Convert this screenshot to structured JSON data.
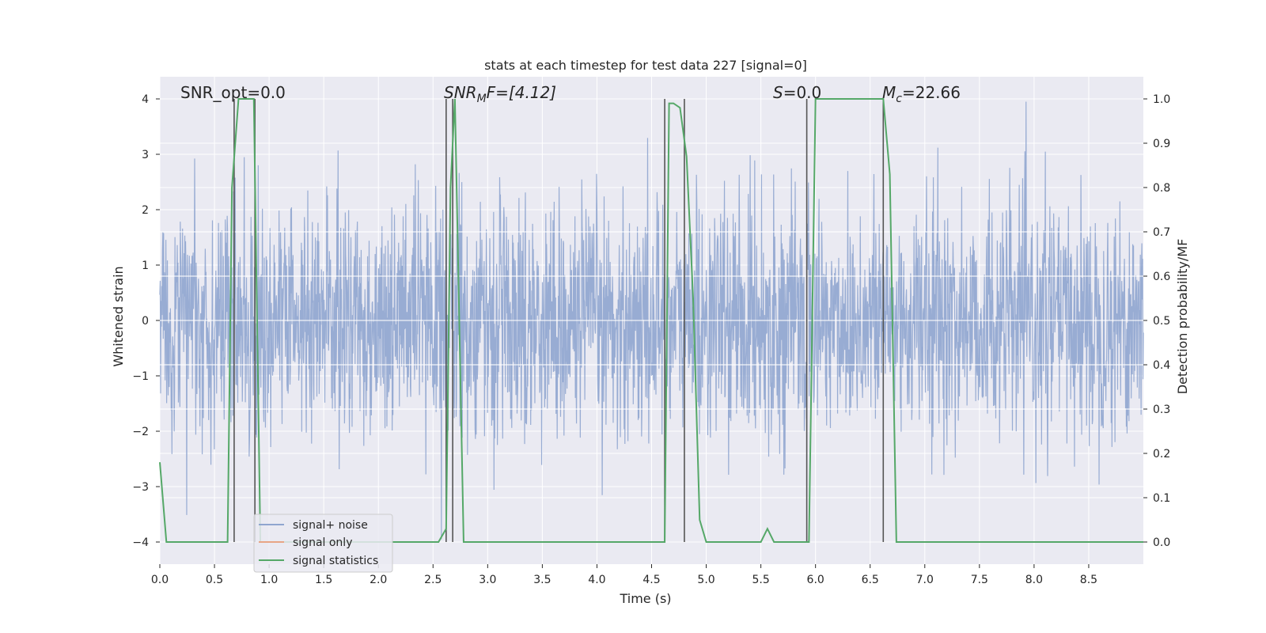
{
  "chart_data": {
    "type": "line",
    "title": "stats at each timestep for test data 227 [signal=0]",
    "xlabel": "Time (s)",
    "ylabel_left": "Whitened strain",
    "ylabel_right": "Detection probability/MF",
    "xlim": [
      0.0,
      9.0
    ],
    "ylim_left": [
      -4.4,
      4.4
    ],
    "ylim_right": [
      -0.05,
      1.05
    ],
    "x_ticks": [
      0.0,
      0.5,
      1.0,
      1.5,
      2.0,
      2.5,
      3.0,
      3.5,
      4.0,
      4.5,
      5.0,
      5.5,
      6.0,
      6.5,
      7.0,
      7.5,
      8.0,
      8.5
    ],
    "x_tick_labels": [
      "0.0",
      "0.5",
      "1.0",
      "1.5",
      "2.0",
      "2.5",
      "3.0",
      "3.5",
      "4.0",
      "4.5",
      "5.0",
      "5.5",
      "6.0",
      "6.5",
      "7.0",
      "7.5",
      "8.0",
      "8.5"
    ],
    "y_left_ticks": [
      -4,
      -3,
      -2,
      -1,
      0,
      1,
      2,
      3,
      4
    ],
    "y_left_tick_labels": [
      "−4",
      "−3",
      "−2",
      "−1",
      "0",
      "1",
      "2",
      "3",
      "4"
    ],
    "y_right_ticks": [
      0.0,
      0.1,
      0.2,
      0.3,
      0.4,
      0.5,
      0.6,
      0.7,
      0.8,
      0.9,
      1.0
    ],
    "y_right_tick_labels": [
      "0.0",
      "0.1",
      "0.2",
      "0.3",
      "0.4",
      "0.5",
      "0.6",
      "0.7",
      "0.8",
      "0.9",
      "1.0"
    ],
    "grid": true,
    "legend_position": "lower-left",
    "legend": [
      "signal+ noise",
      "signal only",
      "signal statistics"
    ],
    "annotations": {
      "snr_opt": "SNR_opt=0.0",
      "snr_mf_main": "SNR",
      "snr_mf_sub": "M",
      "snr_mf_rest": "F=[4.12]",
      "s_var": "S",
      "s_rest": "=0.0",
      "mc_var": "M",
      "mc_sub": "c",
      "mc_rest": "=22.66"
    },
    "vertical_lines_s": [
      0.68,
      0.87,
      2.62,
      2.68,
      4.62,
      4.8,
      5.92,
      6.62
    ],
    "series": [
      {
        "name": "signal+ noise",
        "color": "#8fa5cf",
        "axis": "left",
        "description_range": [
          -4.0,
          4.0
        ]
      },
      {
        "name": "signal only",
        "color": "#e8a585",
        "axis": "left",
        "values": []
      },
      {
        "name": "signal statistics",
        "color": "#55a868",
        "axis": "right",
        "x": [
          0.0,
          0.06,
          0.1,
          0.62,
          0.66,
          0.72,
          0.76,
          0.86,
          0.92,
          0.98,
          2.55,
          2.62,
          2.66,
          2.7,
          2.78,
          2.82,
          4.58,
          4.62,
          4.66,
          4.7,
          4.76,
          4.82,
          4.88,
          4.94,
          5.0,
          5.5,
          5.56,
          5.62,
          5.88,
          5.94,
          6.0,
          6.62,
          6.68,
          6.74,
          6.78,
          9.0
        ],
        "y": [
          0.18,
          0.0,
          0.0,
          0.0,
          0.8,
          1.0,
          1.0,
          1.0,
          0.0,
          0.0,
          0.0,
          0.03,
          0.8,
          1.0,
          0.0,
          0.0,
          0.0,
          0.0,
          0.99,
          0.99,
          0.98,
          0.87,
          0.55,
          0.05,
          0.0,
          0.0,
          0.03,
          0.0,
          0.0,
          0.0,
          1.0,
          1.0,
          0.83,
          0.0,
          0.0,
          0.0
        ]
      }
    ]
  },
  "colors": {
    "plot_background": "#eaeaf2",
    "grid": "#ffffff",
    "noise": "#8fa5cf",
    "signal_only": "#e8a585",
    "statistics": "#55a868",
    "vline": "#555555"
  }
}
